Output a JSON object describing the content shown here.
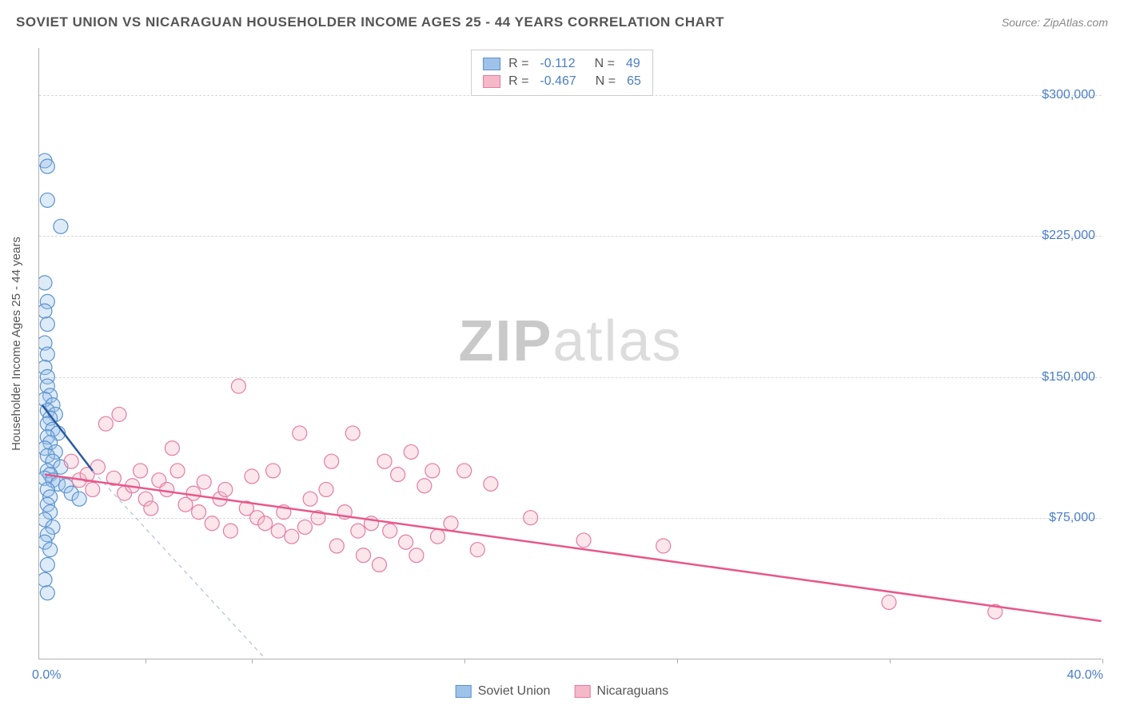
{
  "title": "SOVIET UNION VS NICARAGUAN HOUSEHOLDER INCOME AGES 25 - 44 YEARS CORRELATION CHART",
  "source": "Source: ZipAtlas.com",
  "watermark": {
    "part1": "ZIP",
    "part2": "atlas"
  },
  "chart": {
    "type": "scatter",
    "y_axis_title": "Householder Income Ages 25 - 44 years",
    "xlim": [
      0,
      40
    ],
    "ylim": [
      0,
      325000
    ],
    "x_unit": "%",
    "x_min_label": "0.0%",
    "x_max_label": "40.0%",
    "x_ticks": [
      0,
      4,
      8,
      16,
      24,
      32,
      40
    ],
    "y_ticks": [
      {
        "v": 75000,
        "label": "$75,000"
      },
      {
        "v": 150000,
        "label": "$150,000"
      },
      {
        "v": 225000,
        "label": "$225,000"
      },
      {
        "v": 300000,
        "label": "$300,000"
      }
    ],
    "grid_color": "#d8d8d8",
    "background_color": "#ffffff",
    "marker_radius": 9,
    "series": [
      {
        "name": "Soviet Union",
        "color_fill": "#9fc2e8",
        "color_stroke": "#5a93d0",
        "R": "-0.112",
        "N": "49",
        "trend": {
          "x1": 0.1,
          "y1": 135000,
          "x2": 2.0,
          "y2": 100000,
          "color": "#2a5aa0",
          "width": 2.5,
          "dash": "none"
        },
        "trend_ext": {
          "x1": 2.0,
          "y1": 100000,
          "x2": 8.5,
          "y2": 0,
          "color": "#9db7d6",
          "width": 1,
          "dash": "5,5"
        },
        "points": [
          [
            0.2,
            265000
          ],
          [
            0.3,
            262000
          ],
          [
            0.3,
            244000
          ],
          [
            0.8,
            230000
          ],
          [
            0.2,
            200000
          ],
          [
            0.3,
            190000
          ],
          [
            0.2,
            185000
          ],
          [
            0.3,
            178000
          ],
          [
            0.2,
            168000
          ],
          [
            0.3,
            162000
          ],
          [
            0.2,
            155000
          ],
          [
            0.3,
            150000
          ],
          [
            0.3,
            145000
          ],
          [
            0.4,
            140000
          ],
          [
            0.2,
            138000
          ],
          [
            0.5,
            135000
          ],
          [
            0.3,
            132000
          ],
          [
            0.6,
            130000
          ],
          [
            0.4,
            128000
          ],
          [
            0.3,
            125000
          ],
          [
            0.5,
            122000
          ],
          [
            0.7,
            120000
          ],
          [
            0.3,
            118000
          ],
          [
            0.4,
            115000
          ],
          [
            0.2,
            112000
          ],
          [
            0.6,
            110000
          ],
          [
            0.3,
            108000
          ],
          [
            0.5,
            105000
          ],
          [
            0.8,
            102000
          ],
          [
            0.3,
            100000
          ],
          [
            0.4,
            98000
          ],
          [
            0.2,
            96000
          ],
          [
            0.5,
            95000
          ],
          [
            0.7,
            93000
          ],
          [
            1.0,
            92000
          ],
          [
            0.3,
            90000
          ],
          [
            1.2,
            88000
          ],
          [
            0.4,
            86000
          ],
          [
            1.5,
            85000
          ],
          [
            0.3,
            82000
          ],
          [
            0.4,
            78000
          ],
          [
            0.2,
            74000
          ],
          [
            0.5,
            70000
          ],
          [
            0.3,
            66000
          ],
          [
            0.2,
            62000
          ],
          [
            0.4,
            58000
          ],
          [
            0.3,
            50000
          ],
          [
            0.2,
            42000
          ],
          [
            0.3,
            35000
          ]
        ]
      },
      {
        "name": "Nicaraguans",
        "color_fill": "#f4b8c8",
        "color_stroke": "#e77ba0",
        "R": "-0.467",
        "N": "65",
        "trend": {
          "x1": 0.2,
          "y1": 98000,
          "x2": 40,
          "y2": 20000,
          "color": "#e8588a",
          "width": 2.5,
          "dash": "none"
        },
        "points": [
          [
            1.2,
            105000
          ],
          [
            1.5,
            95000
          ],
          [
            1.8,
            98000
          ],
          [
            2.0,
            90000
          ],
          [
            2.2,
            102000
          ],
          [
            2.5,
            125000
          ],
          [
            2.8,
            96000
          ],
          [
            3.0,
            130000
          ],
          [
            3.2,
            88000
          ],
          [
            3.5,
            92000
          ],
          [
            3.8,
            100000
          ],
          [
            4.0,
            85000
          ],
          [
            4.2,
            80000
          ],
          [
            4.5,
            95000
          ],
          [
            4.8,
            90000
          ],
          [
            5.0,
            112000
          ],
          [
            5.2,
            100000
          ],
          [
            5.5,
            82000
          ],
          [
            5.8,
            88000
          ],
          [
            6.0,
            78000
          ],
          [
            6.2,
            94000
          ],
          [
            6.5,
            72000
          ],
          [
            6.8,
            85000
          ],
          [
            7.0,
            90000
          ],
          [
            7.2,
            68000
          ],
          [
            7.5,
            145000
          ],
          [
            7.8,
            80000
          ],
          [
            8.0,
            97000
          ],
          [
            8.2,
            75000
          ],
          [
            8.5,
            72000
          ],
          [
            8.8,
            100000
          ],
          [
            9.0,
            68000
          ],
          [
            9.2,
            78000
          ],
          [
            9.5,
            65000
          ],
          [
            9.8,
            120000
          ],
          [
            10.0,
            70000
          ],
          [
            10.2,
            85000
          ],
          [
            10.5,
            75000
          ],
          [
            10.8,
            90000
          ],
          [
            11.0,
            105000
          ],
          [
            11.2,
            60000
          ],
          [
            11.5,
            78000
          ],
          [
            11.8,
            120000
          ],
          [
            12.0,
            68000
          ],
          [
            12.2,
            55000
          ],
          [
            12.5,
            72000
          ],
          [
            12.8,
            50000
          ],
          [
            13.0,
            105000
          ],
          [
            13.2,
            68000
          ],
          [
            13.5,
            98000
          ],
          [
            13.8,
            62000
          ],
          [
            14.0,
            110000
          ],
          [
            14.2,
            55000
          ],
          [
            14.5,
            92000
          ],
          [
            14.8,
            100000
          ],
          [
            15.0,
            65000
          ],
          [
            15.5,
            72000
          ],
          [
            16.0,
            100000
          ],
          [
            16.5,
            58000
          ],
          [
            17.0,
            93000
          ],
          [
            18.5,
            75000
          ],
          [
            20.5,
            63000
          ],
          [
            23.5,
            60000
          ],
          [
            32.0,
            30000
          ],
          [
            36.0,
            25000
          ]
        ]
      }
    ]
  },
  "legend_bottom": [
    {
      "label": "Soviet Union",
      "fill": "#9fc2e8",
      "stroke": "#5a93d0"
    },
    {
      "label": "Nicaraguans",
      "fill": "#f4b8c8",
      "stroke": "#e77ba0"
    }
  ]
}
